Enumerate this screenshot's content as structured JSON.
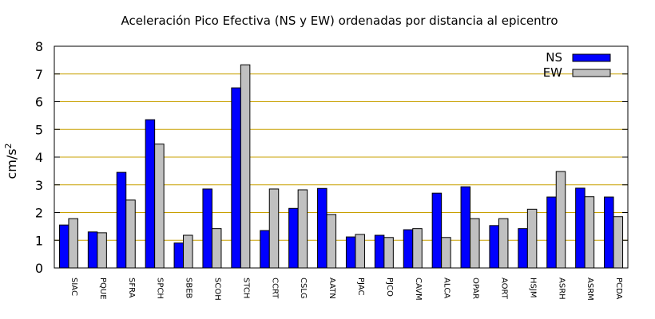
{
  "chart_data": {
    "type": "bar",
    "title": "Aceleración Pico Efectiva (NS y EW) ordenadas por distancia al epicentro",
    "ylabel_base": "cm/s",
    "ylabel_exp": "2",
    "xlabel": "",
    "ylim": [
      0,
      8
    ],
    "yticks": [
      "0",
      "1",
      "2",
      "3",
      "4",
      "5",
      "6",
      "7",
      "8"
    ],
    "grid": true,
    "legend_position": "top-right",
    "categories": [
      "SIAC",
      "PQUE",
      "SFRA",
      "SPCH",
      "SBEB",
      "SCOH",
      "STCH",
      "CCRT",
      "CSLG",
      "AATN",
      "PJAC",
      "PJCO",
      "CAVM",
      "ALCA",
      "OPAR",
      "AORT",
      "HSJM",
      "ASRH",
      "ASRM",
      "PCDA"
    ],
    "series": [
      {
        "name": "NS",
        "color": "#0000ff",
        "values": [
          1.55,
          1.3,
          3.45,
          5.35,
          0.9,
          2.85,
          6.5,
          1.35,
          2.15,
          2.87,
          1.12,
          1.18,
          1.38,
          2.7,
          2.93,
          1.53,
          1.42,
          2.56,
          2.88,
          2.56
        ]
      },
      {
        "name": "EW",
        "color": "#c0c0c0",
        "values": [
          1.78,
          1.27,
          2.45,
          4.47,
          1.18,
          1.42,
          7.33,
          2.85,
          2.82,
          1.93,
          1.21,
          1.1,
          1.42,
          1.1,
          1.78,
          1.78,
          2.12,
          3.48,
          2.57,
          1.85
        ]
      }
    ],
    "colors": {
      "grid": "#c8a000",
      "axis": "#000000",
      "bar_outline": "#000000"
    }
  }
}
